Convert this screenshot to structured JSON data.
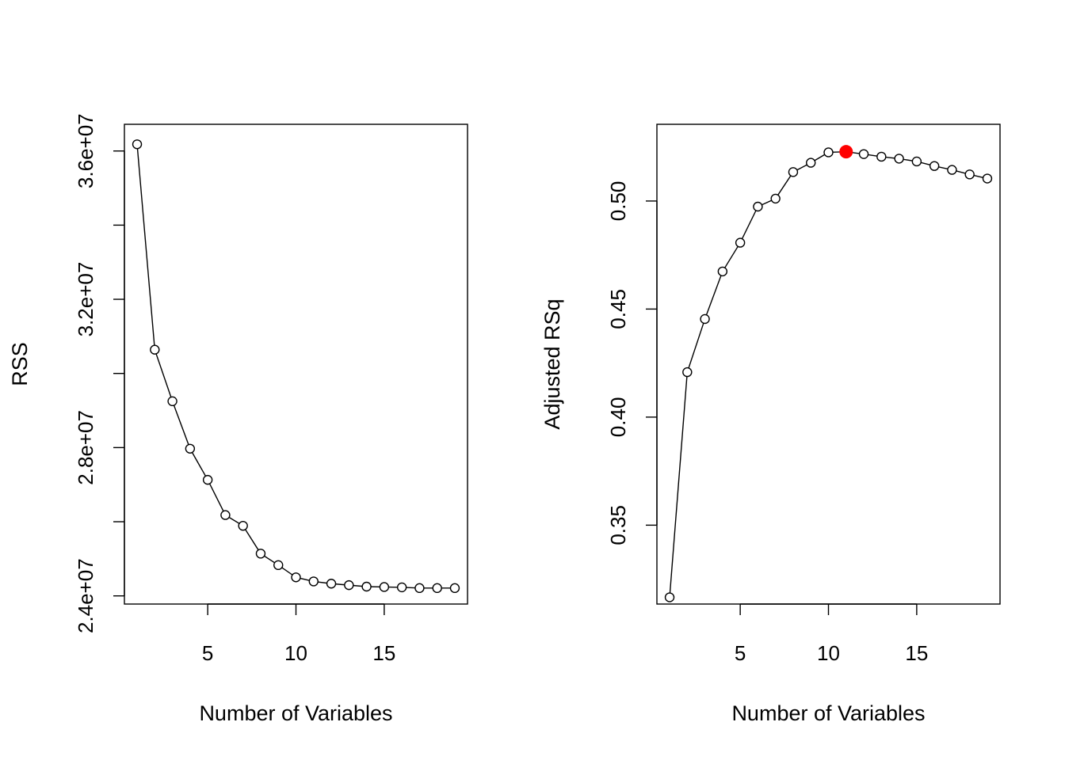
{
  "chart_data": [
    {
      "type": "line",
      "markers": "open-circle",
      "xlabel": "Number of Variables",
      "ylabel": "RSS",
      "xlim": [
        0.28,
        19.72
      ],
      "ylim": [
        23780000,
        36720000
      ],
      "x_ticks": [
        5,
        10,
        15
      ],
      "y_ticks": [
        24000000,
        26000000,
        28000000,
        30000000,
        32000000,
        34000000,
        36000000
      ],
      "y_tick_labels": [
        "2.4e+07",
        "",
        "2.8e+07",
        "",
        "3.2e+07",
        "",
        "3.6e+07"
      ],
      "grid": false,
      "series": [
        {
          "x": [
            1,
            2,
            3,
            4,
            5,
            6,
            7,
            8,
            9,
            10,
            11,
            12,
            13,
            14,
            15,
            16,
            17,
            18,
            19
          ],
          "values": [
            36180000,
            30640000,
            29250000,
            27970000,
            27130000,
            26180000,
            25890000,
            25140000,
            24830000,
            24500000,
            24390000,
            24330000,
            24290000,
            24250000,
            24240000,
            24230000,
            24210000,
            24210000,
            24210000
          ]
        }
      ]
    },
    {
      "type": "line",
      "markers": "open-circle",
      "xlabel": "Number of Variables",
      "ylabel": "Adjusted RSq",
      "xlim": [
        0.28,
        19.72
      ],
      "ylim": [
        0.3135,
        0.5355
      ],
      "x_ticks": [
        5,
        10,
        15
      ],
      "y_ticks": [
        0.35,
        0.4,
        0.45,
        0.5
      ],
      "y_tick_labels": [
        "0.35",
        "0.40",
        "0.45",
        "0.50"
      ],
      "grid": false,
      "series": [
        {
          "x": [
            1,
            2,
            3,
            4,
            5,
            6,
            7,
            8,
            9,
            10,
            11,
            12,
            13,
            14,
            15,
            16,
            17,
            18,
            19
          ],
          "values": [
            0.3166,
            0.4208,
            0.4454,
            0.4674,
            0.4807,
            0.4974,
            0.5011,
            0.5134,
            0.5177,
            0.5225,
            0.5228,
            0.5217,
            0.5205,
            0.5196,
            0.5183,
            0.5162,
            0.5144,
            0.5123,
            0.5104
          ]
        }
      ],
      "highlight": {
        "x": 11,
        "y": 0.5228,
        "color": "#ff0000"
      }
    }
  ]
}
